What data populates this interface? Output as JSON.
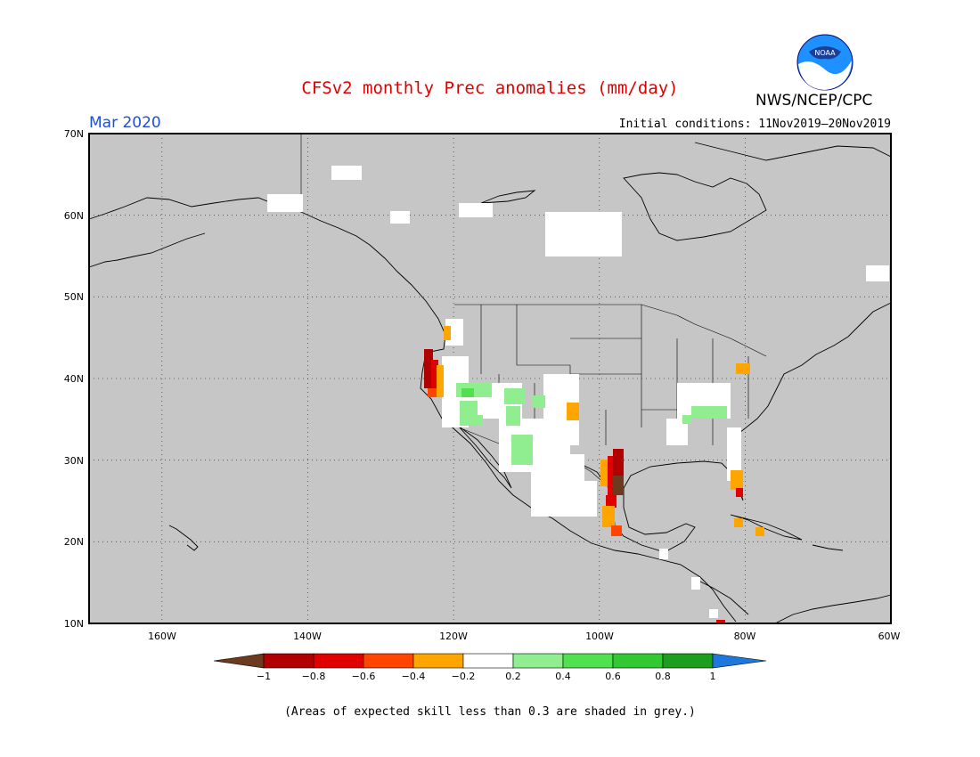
{
  "title": "CFSv2 monthly Prec anomalies (mm/day)",
  "agency": "NWS/NCEP/CPC",
  "logo_text": "NOAA",
  "month": "Mar 2020",
  "initial_conditions": "Initial conditions: 11Nov2019–20Nov2019",
  "footnote": "(Areas of expected skill less than 0.3 are shaded in grey.)",
  "colors": {
    "grey_background": "#c6c6c6",
    "title": "#e00000",
    "month": "#1f4fd6"
  },
  "lat_labels": [
    "70N",
    "60N",
    "50N",
    "40N",
    "30N",
    "20N",
    "10N"
  ],
  "lon_labels": [
    "160W",
    "140W",
    "120W",
    "100W",
    "80W",
    "60W"
  ],
  "colorbar": {
    "labels": [
      "−1",
      "−0.8",
      "−0.6",
      "−0.4",
      "−0.2",
      "0.2",
      "0.4",
      "0.6",
      "0.8",
      "1"
    ],
    "colors": [
      "#6b3a1f",
      "#b00000",
      "#e00000",
      "#ff4500",
      "#ffa500",
      "#ffffff",
      "#90ee90",
      "#50e050",
      "#32c832",
      "#1e9e1e",
      "#1e78dc"
    ]
  }
}
